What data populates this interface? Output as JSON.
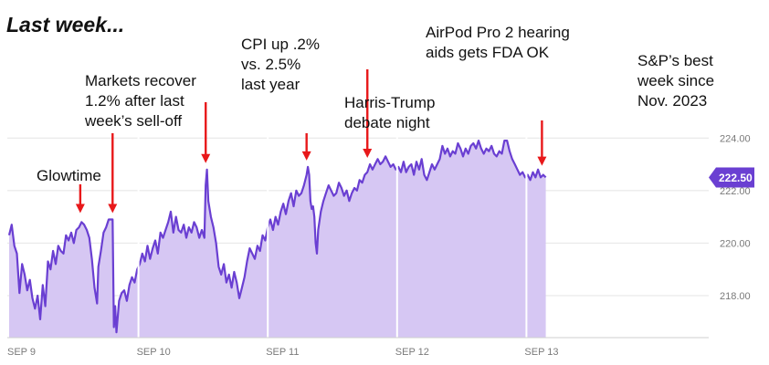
{
  "heading": "Last week...",
  "colors": {
    "line": "#6a3fd2",
    "fill": "#d6c7f3",
    "arrow": "#e8181a",
    "grid": "#e4e4e4",
    "tag": "#6a3fd2"
  },
  "chart_data": {
    "type": "area",
    "x_labels": [
      "SEP 9",
      "SEP 10",
      "SEP 11",
      "SEP 12",
      "SEP 13"
    ],
    "ylim": [
      216.4,
      224.6
    ],
    "y_ticks": [
      "224.00",
      "222.00",
      "220.00",
      "218.00"
    ],
    "y_tick_values": [
      224,
      222,
      220,
      218
    ],
    "last_price_label": "222.50",
    "last_price": 222.5,
    "x_unit": "trading day index (0 = Sep 9 open, each day = 1)",
    "series": [
      {
        "values": [
          [
            0.0,
            220.3
          ],
          [
            0.02,
            220.7
          ],
          [
            0.04,
            219.9
          ],
          [
            0.06,
            219.6
          ],
          [
            0.08,
            218.1
          ],
          [
            0.1,
            219.2
          ],
          [
            0.12,
            218.8
          ],
          [
            0.14,
            218.2
          ],
          [
            0.16,
            218.6
          ],
          [
            0.18,
            217.9
          ],
          [
            0.2,
            217.5
          ],
          [
            0.22,
            218.0
          ],
          [
            0.24,
            217.1
          ],
          [
            0.26,
            218.4
          ],
          [
            0.28,
            217.6
          ],
          [
            0.3,
            219.3
          ],
          [
            0.32,
            219.0
          ],
          [
            0.34,
            219.7
          ],
          [
            0.36,
            219.2
          ],
          [
            0.38,
            219.9
          ],
          [
            0.4,
            219.7
          ],
          [
            0.42,
            219.6
          ],
          [
            0.44,
            220.3
          ],
          [
            0.46,
            220.1
          ],
          [
            0.48,
            220.4
          ],
          [
            0.5,
            220.0
          ],
          [
            0.52,
            220.5
          ],
          [
            0.54,
            220.6
          ],
          [
            0.56,
            220.8
          ],
          [
            0.58,
            220.7
          ],
          [
            0.6,
            220.5
          ],
          [
            0.62,
            220.2
          ],
          [
            0.64,
            219.4
          ],
          [
            0.66,
            218.3
          ],
          [
            0.68,
            217.7
          ],
          [
            0.69,
            219.1
          ],
          [
            0.71,
            219.7
          ],
          [
            0.73,
            220.4
          ],
          [
            0.75,
            220.6
          ],
          [
            0.77,
            220.9
          ],
          [
            0.79,
            220.9
          ],
          [
            0.8,
            220.9
          ],
          [
            0.81,
            216.8
          ],
          [
            0.82,
            217.6
          ],
          [
            0.83,
            216.6
          ],
          [
            0.85,
            217.8
          ],
          [
            0.87,
            218.1
          ],
          [
            0.89,
            218.2
          ],
          [
            0.91,
            217.8
          ],
          [
            0.93,
            218.4
          ],
          [
            0.95,
            218.7
          ],
          [
            0.97,
            218.5
          ],
          [
            0.99,
            219.0
          ],
          [
            1.01,
            219.2
          ],
          [
            1.03,
            219.6
          ],
          [
            1.05,
            219.3
          ],
          [
            1.07,
            219.9
          ],
          [
            1.09,
            219.4
          ],
          [
            1.11,
            219.8
          ],
          [
            1.13,
            220.1
          ],
          [
            1.15,
            219.6
          ],
          [
            1.17,
            220.4
          ],
          [
            1.19,
            220.2
          ],
          [
            1.21,
            220.5
          ],
          [
            1.23,
            220.8
          ],
          [
            1.25,
            221.2
          ],
          [
            1.27,
            220.4
          ],
          [
            1.29,
            221.0
          ],
          [
            1.31,
            220.5
          ],
          [
            1.33,
            220.4
          ],
          [
            1.35,
            220.7
          ],
          [
            1.37,
            220.2
          ],
          [
            1.39,
            220.6
          ],
          [
            1.41,
            220.4
          ],
          [
            1.43,
            220.8
          ],
          [
            1.45,
            220.6
          ],
          [
            1.47,
            220.2
          ],
          [
            1.49,
            220.5
          ],
          [
            1.51,
            220.2
          ],
          [
            1.52,
            222.2
          ],
          [
            1.53,
            222.8
          ],
          [
            1.54,
            221.6
          ],
          [
            1.56,
            221.0
          ],
          [
            1.58,
            220.6
          ],
          [
            1.6,
            220.0
          ],
          [
            1.62,
            219.1
          ],
          [
            1.64,
            218.8
          ],
          [
            1.66,
            219.2
          ],
          [
            1.68,
            218.5
          ],
          [
            1.7,
            218.8
          ],
          [
            1.72,
            218.3
          ],
          [
            1.74,
            218.9
          ],
          [
            1.76,
            218.5
          ],
          [
            1.78,
            217.9
          ],
          [
            1.8,
            218.3
          ],
          [
            1.82,
            218.7
          ],
          [
            1.84,
            219.3
          ],
          [
            1.86,
            219.8
          ],
          [
            1.88,
            219.6
          ],
          [
            1.9,
            219.4
          ],
          [
            1.92,
            219.9
          ],
          [
            1.94,
            219.7
          ],
          [
            1.96,
            220.3
          ],
          [
            1.98,
            220.1
          ],
          [
            2.0,
            220.6
          ],
          [
            2.02,
            220.9
          ],
          [
            2.04,
            220.5
          ],
          [
            2.06,
            221.0
          ],
          [
            2.08,
            220.7
          ],
          [
            2.1,
            221.2
          ],
          [
            2.12,
            221.5
          ],
          [
            2.14,
            221.1
          ],
          [
            2.16,
            221.6
          ],
          [
            2.18,
            221.9
          ],
          [
            2.2,
            221.4
          ],
          [
            2.22,
            222.0
          ],
          [
            2.24,
            221.8
          ],
          [
            2.26,
            221.9
          ],
          [
            2.28,
            222.2
          ],
          [
            2.3,
            222.6
          ],
          [
            2.31,
            222.9
          ],
          [
            2.32,
            222.6
          ],
          [
            2.33,
            221.6
          ],
          [
            2.34,
            221.3
          ],
          [
            2.35,
            221.4
          ],
          [
            2.36,
            221.0
          ],
          [
            2.37,
            220.0
          ],
          [
            2.38,
            219.6
          ],
          [
            2.39,
            220.5
          ],
          [
            2.41,
            221.2
          ],
          [
            2.43,
            221.6
          ],
          [
            2.45,
            221.9
          ],
          [
            2.47,
            222.2
          ],
          [
            2.49,
            222.0
          ],
          [
            2.51,
            221.8
          ],
          [
            2.53,
            221.9
          ],
          [
            2.55,
            222.3
          ],
          [
            2.57,
            222.1
          ],
          [
            2.59,
            221.8
          ],
          [
            2.61,
            222.0
          ],
          [
            2.63,
            221.6
          ],
          [
            2.65,
            221.9
          ],
          [
            2.67,
            222.1
          ],
          [
            2.69,
            222.0
          ],
          [
            2.71,
            222.4
          ],
          [
            2.73,
            222.3
          ],
          [
            2.75,
            222.6
          ],
          [
            2.77,
            222.7
          ],
          [
            2.79,
            223.0
          ],
          [
            2.81,
            222.8
          ],
          [
            2.83,
            223.0
          ],
          [
            2.85,
            223.2
          ],
          [
            2.87,
            223.0
          ],
          [
            2.89,
            223.1
          ],
          [
            2.91,
            223.3
          ],
          [
            2.93,
            223.1
          ],
          [
            2.95,
            222.9
          ],
          [
            2.97,
            223.0
          ],
          [
            2.99,
            222.8
          ],
          [
            3.01,
            222.9
          ],
          [
            3.03,
            222.7
          ],
          [
            3.05,
            223.1
          ],
          [
            3.07,
            222.7
          ],
          [
            3.09,
            222.9
          ],
          [
            3.11,
            223.0
          ],
          [
            3.13,
            222.6
          ],
          [
            3.15,
            223.1
          ],
          [
            3.17,
            222.8
          ],
          [
            3.19,
            223.2
          ],
          [
            3.21,
            222.6
          ],
          [
            3.23,
            222.4
          ],
          [
            3.25,
            222.7
          ],
          [
            3.27,
            223.0
          ],
          [
            3.29,
            222.8
          ],
          [
            3.31,
            223.0
          ],
          [
            3.33,
            223.2
          ],
          [
            3.35,
            223.7
          ],
          [
            3.37,
            223.4
          ],
          [
            3.39,
            223.6
          ],
          [
            3.41,
            223.3
          ],
          [
            3.43,
            223.5
          ],
          [
            3.45,
            223.4
          ],
          [
            3.47,
            223.8
          ],
          [
            3.49,
            223.6
          ],
          [
            3.51,
            223.3
          ],
          [
            3.53,
            223.6
          ],
          [
            3.55,
            223.4
          ],
          [
            3.57,
            223.7
          ],
          [
            3.59,
            223.8
          ],
          [
            3.61,
            223.6
          ],
          [
            3.63,
            223.9
          ],
          [
            3.65,
            223.6
          ],
          [
            3.67,
            223.4
          ],
          [
            3.69,
            223.6
          ],
          [
            3.71,
            223.5
          ],
          [
            3.73,
            223.7
          ],
          [
            3.75,
            223.4
          ],
          [
            3.77,
            223.3
          ],
          [
            3.79,
            223.5
          ],
          [
            3.81,
            223.4
          ],
          [
            3.83,
            223.9
          ],
          [
            3.85,
            223.9
          ],
          [
            3.87,
            223.5
          ],
          [
            3.89,
            223.2
          ],
          [
            3.91,
            223.0
          ],
          [
            3.93,
            222.8
          ],
          [
            3.95,
            222.6
          ],
          [
            3.97,
            222.7
          ],
          [
            3.99,
            222.5
          ],
          [
            4.01,
            222.6
          ],
          [
            4.03,
            222.4
          ],
          [
            4.05,
            222.7
          ],
          [
            4.07,
            222.5
          ],
          [
            4.09,
            222.8
          ],
          [
            4.11,
            222.5
          ],
          [
            4.13,
            222.6
          ],
          [
            4.15,
            222.5
          ]
        ]
      }
    ],
    "annotations": [
      {
        "text": "Glowtime",
        "x": 0.55,
        "y": 220.9
      },
      {
        "text": "Markets recover\n1.2% after last\nweek’s sell-off",
        "x": 0.8,
        "y": 220.9
      },
      {
        "text": "CPI up .2%\nvs. 2.5%\nlast year",
        "x": 1.52,
        "y": 222.8
      },
      {
        "text": "Harris-Trump\ndebate night",
        "x": 2.3,
        "y": 222.9
      },
      {
        "text": "AirPod Pro 2 hearing\naids gets FDA OK",
        "x": 2.77,
        "y": 223.0
      },
      {
        "text": "S&P’s best\nweek since\nNov. 2023",
        "x": 4.12,
        "y": 222.7
      }
    ]
  }
}
